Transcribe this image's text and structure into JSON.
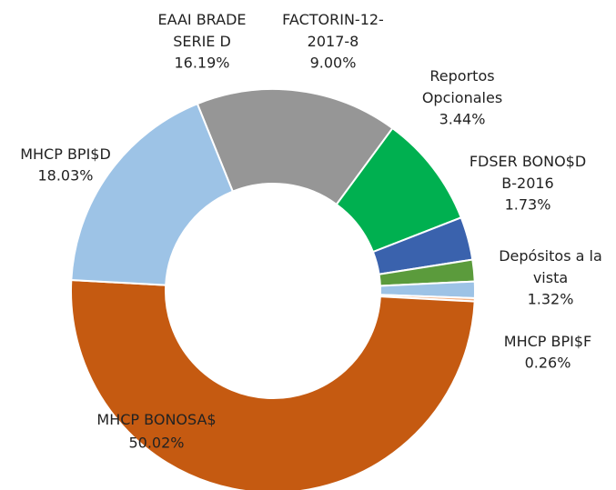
{
  "chart_data": {
    "type": "donut",
    "categories": [
      "EAAI BRADE SERIE D",
      "FACTORIN-12-2017-8",
      "Reportos Opcionales",
      "FDSER BONO$D B-2016",
      "Depósitos a la vista",
      "MHCP BPI$F",
      "MHCP BONOSA$",
      "MHCP BPI$D"
    ],
    "values": [
      16.19,
      9.0,
      3.44,
      1.73,
      1.32,
      0.26,
      50.02,
      18.03
    ],
    "value_labels": [
      "16.19%",
      "9.00%",
      "3.44%",
      "1.73%",
      "1.32%",
      "0.26%",
      "50.02%",
      "18.03%"
    ],
    "colors": [
      "#969696",
      "#00b050",
      "#3a62ad",
      "#5b9b3c",
      "#9dc3e6",
      "#f4b183",
      "#c55a11",
      "#9dc3e6"
    ]
  }
}
